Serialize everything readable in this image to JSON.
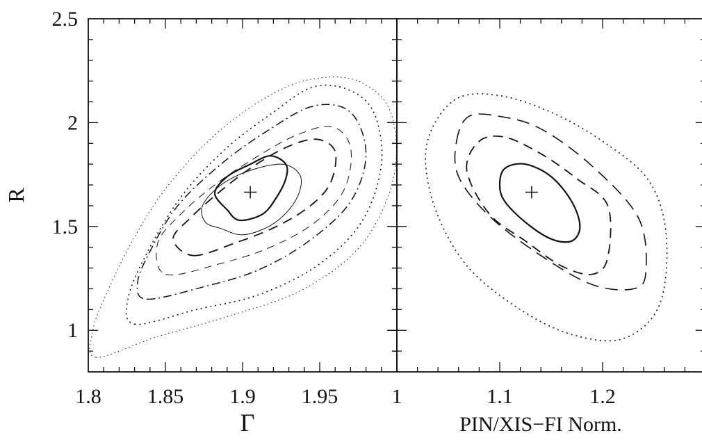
{
  "chart_data": [
    {
      "type": "contour",
      "panel": "left",
      "xlabel": "Γ",
      "ylabel": "R",
      "xlim": [
        1.8,
        2.0
      ],
      "ylim": [
        0.8,
        2.5
      ],
      "x_ticks": [
        {
          "value": 1.8,
          "label": "1.8"
        },
        {
          "value": 1.85,
          "label": "1.85"
        },
        {
          "value": 1.9,
          "label": "1.9"
        },
        {
          "value": 1.95,
          "label": "1.95"
        }
      ],
      "y_ticks": [
        {
          "value": 1.0,
          "label": "1"
        },
        {
          "value": 1.5,
          "label": "1.5"
        },
        {
          "value": 2.0,
          "label": "2"
        },
        {
          "value": 2.5,
          "label": "2.5"
        }
      ],
      "best_fit": {
        "x": 1.905,
        "y": 1.665
      },
      "contours": [
        {
          "level": "solid",
          "style": "solid",
          "points": [
            [
              1.89,
              1.58
            ],
            [
              1.898,
              1.53
            ],
            [
              1.913,
              1.56
            ],
            [
              1.922,
              1.64
            ],
            [
              1.928,
              1.73
            ],
            [
              1.928,
              1.8
            ],
            [
              1.918,
              1.84
            ],
            [
              1.905,
              1.8
            ],
            [
              1.89,
              1.74
            ],
            [
              1.882,
              1.66
            ]
          ]
        },
        {
          "level": "solid-thin",
          "style": "thin",
          "points": [
            [
              1.886,
              1.49
            ],
            [
              1.9,
              1.46
            ],
            [
              1.917,
              1.5
            ],
            [
              1.93,
              1.58
            ],
            [
              1.937,
              1.67
            ],
            [
              1.937,
              1.75
            ],
            [
              1.926,
              1.8
            ],
            [
              1.905,
              1.77
            ],
            [
              1.886,
              1.7
            ],
            [
              1.874,
              1.6
            ],
            [
              1.876,
              1.52
            ]
          ]
        },
        {
          "level": "dash",
          "style": "dashed",
          "points": [
            [
              1.868,
              1.36
            ],
            [
              1.895,
              1.42
            ],
            [
              1.922,
              1.5
            ],
            [
              1.944,
              1.6
            ],
            [
              1.957,
              1.71
            ],
            [
              1.96,
              1.86
            ],
            [
              1.948,
              1.92
            ],
            [
              1.928,
              1.88
            ],
            [
              1.905,
              1.78
            ],
            [
              1.884,
              1.66
            ],
            [
              1.866,
              1.54
            ],
            [
              1.855,
              1.44
            ]
          ]
        },
        {
          "level": "dash-thin",
          "style": "dashed-thin",
          "points": [
            [
              1.85,
              1.27
            ],
            [
              1.885,
              1.32
            ],
            [
              1.918,
              1.4
            ],
            [
              1.947,
              1.52
            ],
            [
              1.966,
              1.68
            ],
            [
              1.97,
              1.88
            ],
            [
              1.958,
              1.98
            ],
            [
              1.935,
              1.94
            ],
            [
              1.908,
              1.83
            ],
            [
              1.882,
              1.7
            ],
            [
              1.86,
              1.56
            ],
            [
              1.845,
              1.42
            ]
          ]
        },
        {
          "level": "dash-dot",
          "style": "dashdot",
          "points": [
            [
              1.838,
              1.15
            ],
            [
              1.875,
              1.21
            ],
            [
              1.91,
              1.29
            ],
            [
              1.943,
              1.43
            ],
            [
              1.97,
              1.62
            ],
            [
              1.98,
              1.85
            ],
            [
              1.97,
              2.05
            ],
            [
              1.946,
              2.08
            ],
            [
              1.916,
              1.96
            ],
            [
              1.886,
              1.8
            ],
            [
              1.858,
              1.6
            ],
            [
              1.84,
              1.38
            ],
            [
              1.832,
              1.23
            ]
          ]
        },
        {
          "level": "dot",
          "style": "dotted",
          "points": [
            [
              1.83,
              1.03
            ],
            [
              1.87,
              1.1
            ],
            [
              1.91,
              1.17
            ],
            [
              1.948,
              1.31
            ],
            [
              1.977,
              1.52
            ],
            [
              1.99,
              1.8
            ],
            [
              1.985,
              2.05
            ],
            [
              1.968,
              2.16
            ],
            [
              1.945,
              2.17
            ],
            [
              1.92,
              2.05
            ],
            [
              1.89,
              1.88
            ],
            [
              1.862,
              1.66
            ],
            [
              1.84,
              1.4
            ],
            [
              1.826,
              1.16
            ]
          ]
        },
        {
          "level": "dot-outer",
          "style": "dotted-fine",
          "points": [
            [
              1.805,
              0.87
            ],
            [
              1.845,
              0.97
            ],
            [
              1.892,
              1.07
            ],
            [
              1.94,
              1.2
            ],
            [
              1.978,
              1.42
            ],
            [
              1.998,
              1.74
            ],
            [
              1.996,
              2.05
            ],
            [
              1.975,
              2.2
            ],
            [
              1.945,
              2.21
            ],
            [
              1.915,
              2.12
            ],
            [
              1.882,
              1.94
            ],
            [
              1.852,
              1.7
            ],
            [
              1.83,
              1.45
            ],
            [
              1.812,
              1.18
            ],
            [
              1.803,
              1.0
            ]
          ]
        }
      ]
    },
    {
      "type": "contour",
      "panel": "right",
      "xlabel": "PIN/XIS−FI Norm.",
      "ylabel": "",
      "xlim": [
        1.0,
        1.3
      ],
      "ylim": [
        0.8,
        2.5
      ],
      "x_ticks": [
        {
          "value": 1.0,
          "label": "1"
        },
        {
          "value": 1.1,
          "label": "1.1"
        },
        {
          "value": 1.2,
          "label": "1.2"
        }
      ],
      "y_ticks": [
        {
          "value": 1.0,
          "label": ""
        },
        {
          "value": 1.5,
          "label": ""
        },
        {
          "value": 2.0,
          "label": ""
        },
        {
          "value": 2.5,
          "label": ""
        }
      ],
      "best_fit": {
        "x": 1.131,
        "y": 1.665
      },
      "contours": [
        {
          "level": "solid",
          "style": "solid",
          "points": [
            [
              1.1,
              1.7
            ],
            [
              1.105,
              1.78
            ],
            [
              1.125,
              1.8
            ],
            [
              1.15,
              1.74
            ],
            [
              1.17,
              1.62
            ],
            [
              1.178,
              1.5
            ],
            [
              1.17,
              1.43
            ],
            [
              1.15,
              1.44
            ],
            [
              1.125,
              1.52
            ],
            [
              1.105,
              1.62
            ]
          ]
        },
        {
          "level": "dash-fine",
          "style": "dashed",
          "points": [
            [
              1.068,
              1.77
            ],
            [
              1.08,
              1.91
            ],
            [
              1.105,
              1.93
            ],
            [
              1.14,
              1.85
            ],
            [
              1.175,
              1.73
            ],
            [
              1.205,
              1.6
            ],
            [
              1.205,
              1.35
            ],
            [
              1.19,
              1.27
            ],
            [
              1.16,
              1.31
            ],
            [
              1.125,
              1.43
            ],
            [
              1.09,
              1.56
            ]
          ]
        },
        {
          "level": "dash-coarse",
          "style": "dashed-coarse",
          "points": [
            [
              1.058,
              1.91
            ],
            [
              1.07,
              2.03
            ],
            [
              1.1,
              2.03
            ],
            [
              1.14,
              1.97
            ],
            [
              1.19,
              1.79
            ],
            [
              1.235,
              1.54
            ],
            [
              1.242,
              1.28
            ],
            [
              1.23,
              1.2
            ],
            [
              1.19,
              1.22
            ],
            [
              1.14,
              1.36
            ],
            [
              1.09,
              1.55
            ],
            [
              1.06,
              1.74
            ]
          ]
        },
        {
          "level": "dot",
          "style": "dotted",
          "points": [
            [
              1.035,
              1.98
            ],
            [
              1.06,
              2.12
            ],
            [
              1.1,
              2.13
            ],
            [
              1.15,
              2.05
            ],
            [
              1.2,
              1.91
            ],
            [
              1.245,
              1.72
            ],
            [
              1.262,
              1.45
            ],
            [
              1.255,
              1.12
            ],
            [
              1.22,
              0.96
            ],
            [
              1.17,
              0.98
            ],
            [
              1.12,
              1.1
            ],
            [
              1.07,
              1.3
            ],
            [
              1.04,
              1.55
            ],
            [
              1.028,
              1.8
            ]
          ]
        }
      ]
    }
  ]
}
